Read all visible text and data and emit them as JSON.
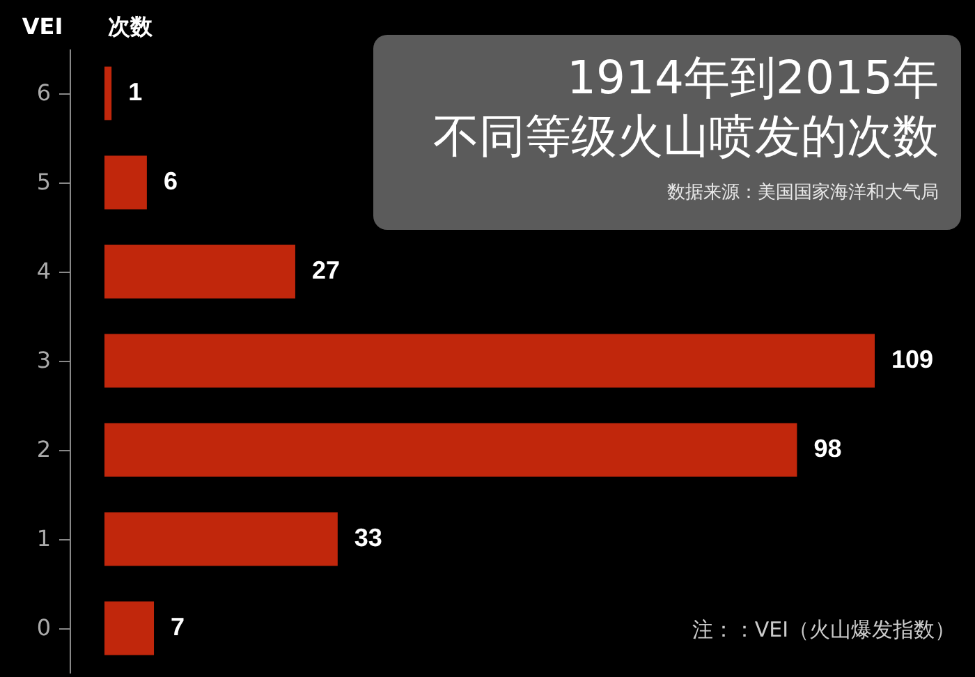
{
  "chart_data": {
    "type": "bar",
    "orientation": "horizontal",
    "title": "1914年到2015年",
    "subtitle": "不同等级火山喷发的次数",
    "ylabel": "VEI",
    "xlabel": "次数",
    "categories": [
      "6",
      "5",
      "4",
      "3",
      "2",
      "1",
      "0"
    ],
    "values": [
      1,
      6,
      27,
      109,
      98,
      33,
      7
    ],
    "color": "#c1270c",
    "data_labels": true,
    "annotations": [
      "数据来源：美国国家海洋和大气局",
      "注：：VEI（火山爆发指数）"
    ]
  }
}
